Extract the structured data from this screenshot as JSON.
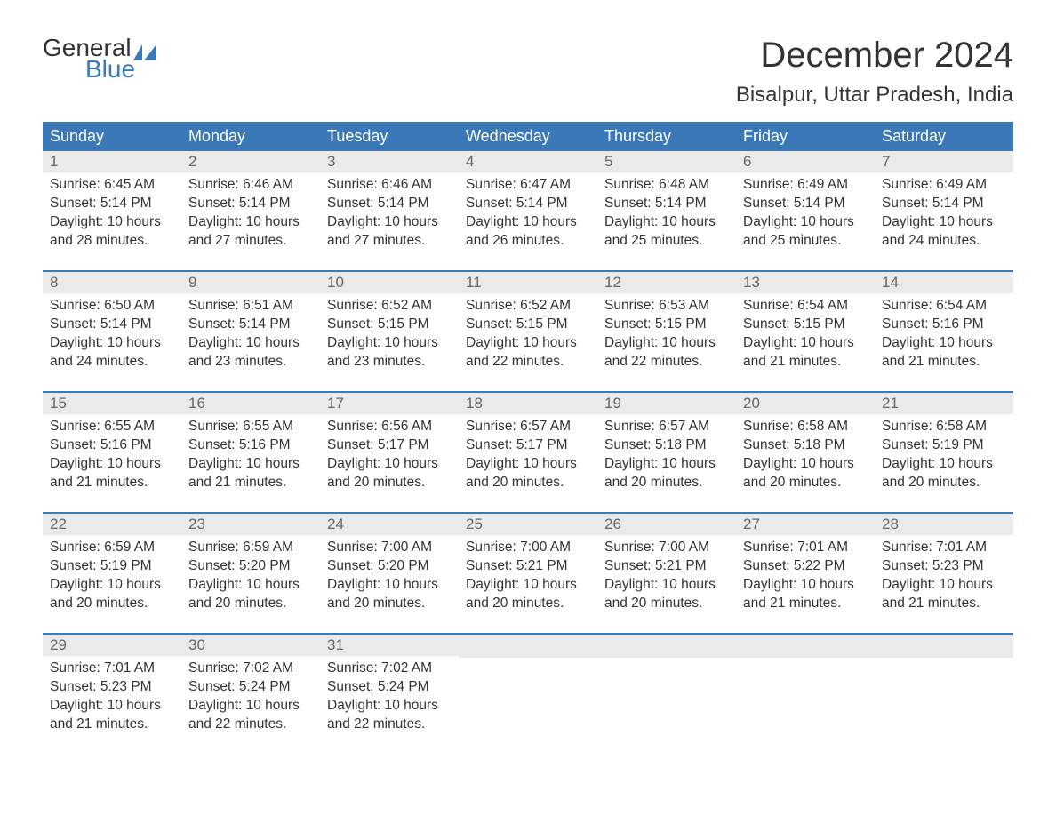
{
  "brand": {
    "word1": "General",
    "word2": "Blue",
    "word1_color": "#333333",
    "word2_color": "#3A78B8",
    "flag_color": "#3A78B8"
  },
  "title": "December 2024",
  "location": "Bisalpur, Uttar Pradesh, India",
  "colors": {
    "header_bg": "#3A78B8",
    "header_text": "#ffffff",
    "daynum_bg": "#EAEAEA",
    "daynum_text": "#666666",
    "body_text": "#333333",
    "week_divider": "#3A78B8",
    "page_bg": "#ffffff"
  },
  "typography": {
    "title_fontsize": 40,
    "location_fontsize": 24,
    "weekday_fontsize": 18,
    "daynum_fontsize": 17,
    "body_fontsize": 15.5,
    "logo_fontsize": 28
  },
  "weekdays": [
    "Sunday",
    "Monday",
    "Tuesday",
    "Wednesday",
    "Thursday",
    "Friday",
    "Saturday"
  ],
  "weeks": [
    [
      {
        "n": "1",
        "sunrise": "6:45 AM",
        "sunset": "5:14 PM",
        "dl1": "10 hours",
        "dl2": "and 28 minutes."
      },
      {
        "n": "2",
        "sunrise": "6:46 AM",
        "sunset": "5:14 PM",
        "dl1": "10 hours",
        "dl2": "and 27 minutes."
      },
      {
        "n": "3",
        "sunrise": "6:46 AM",
        "sunset": "5:14 PM",
        "dl1": "10 hours",
        "dl2": "and 27 minutes."
      },
      {
        "n": "4",
        "sunrise": "6:47 AM",
        "sunset": "5:14 PM",
        "dl1": "10 hours",
        "dl2": "and 26 minutes."
      },
      {
        "n": "5",
        "sunrise": "6:48 AM",
        "sunset": "5:14 PM",
        "dl1": "10 hours",
        "dl2": "and 25 minutes."
      },
      {
        "n": "6",
        "sunrise": "6:49 AM",
        "sunset": "5:14 PM",
        "dl1": "10 hours",
        "dl2": "and 25 minutes."
      },
      {
        "n": "7",
        "sunrise": "6:49 AM",
        "sunset": "5:14 PM",
        "dl1": "10 hours",
        "dl2": "and 24 minutes."
      }
    ],
    [
      {
        "n": "8",
        "sunrise": "6:50 AM",
        "sunset": "5:14 PM",
        "dl1": "10 hours",
        "dl2": "and 24 minutes."
      },
      {
        "n": "9",
        "sunrise": "6:51 AM",
        "sunset": "5:14 PM",
        "dl1": "10 hours",
        "dl2": "and 23 minutes."
      },
      {
        "n": "10",
        "sunrise": "6:52 AM",
        "sunset": "5:15 PM",
        "dl1": "10 hours",
        "dl2": "and 23 minutes."
      },
      {
        "n": "11",
        "sunrise": "6:52 AM",
        "sunset": "5:15 PM",
        "dl1": "10 hours",
        "dl2": "and 22 minutes."
      },
      {
        "n": "12",
        "sunrise": "6:53 AM",
        "sunset": "5:15 PM",
        "dl1": "10 hours",
        "dl2": "and 22 minutes."
      },
      {
        "n": "13",
        "sunrise": "6:54 AM",
        "sunset": "5:15 PM",
        "dl1": "10 hours",
        "dl2": "and 21 minutes."
      },
      {
        "n": "14",
        "sunrise": "6:54 AM",
        "sunset": "5:16 PM",
        "dl1": "10 hours",
        "dl2": "and 21 minutes."
      }
    ],
    [
      {
        "n": "15",
        "sunrise": "6:55 AM",
        "sunset": "5:16 PM",
        "dl1": "10 hours",
        "dl2": "and 21 minutes."
      },
      {
        "n": "16",
        "sunrise": "6:55 AM",
        "sunset": "5:16 PM",
        "dl1": "10 hours",
        "dl2": "and 21 minutes."
      },
      {
        "n": "17",
        "sunrise": "6:56 AM",
        "sunset": "5:17 PM",
        "dl1": "10 hours",
        "dl2": "and 20 minutes."
      },
      {
        "n": "18",
        "sunrise": "6:57 AM",
        "sunset": "5:17 PM",
        "dl1": "10 hours",
        "dl2": "and 20 minutes."
      },
      {
        "n": "19",
        "sunrise": "6:57 AM",
        "sunset": "5:18 PM",
        "dl1": "10 hours",
        "dl2": "and 20 minutes."
      },
      {
        "n": "20",
        "sunrise": "6:58 AM",
        "sunset": "5:18 PM",
        "dl1": "10 hours",
        "dl2": "and 20 minutes."
      },
      {
        "n": "21",
        "sunrise": "6:58 AM",
        "sunset": "5:19 PM",
        "dl1": "10 hours",
        "dl2": "and 20 minutes."
      }
    ],
    [
      {
        "n": "22",
        "sunrise": "6:59 AM",
        "sunset": "5:19 PM",
        "dl1": "10 hours",
        "dl2": "and 20 minutes."
      },
      {
        "n": "23",
        "sunrise": "6:59 AM",
        "sunset": "5:20 PM",
        "dl1": "10 hours",
        "dl2": "and 20 minutes."
      },
      {
        "n": "24",
        "sunrise": "7:00 AM",
        "sunset": "5:20 PM",
        "dl1": "10 hours",
        "dl2": "and 20 minutes."
      },
      {
        "n": "25",
        "sunrise": "7:00 AM",
        "sunset": "5:21 PM",
        "dl1": "10 hours",
        "dl2": "and 20 minutes."
      },
      {
        "n": "26",
        "sunrise": "7:00 AM",
        "sunset": "5:21 PM",
        "dl1": "10 hours",
        "dl2": "and 20 minutes."
      },
      {
        "n": "27",
        "sunrise": "7:01 AM",
        "sunset": "5:22 PM",
        "dl1": "10 hours",
        "dl2": "and 21 minutes."
      },
      {
        "n": "28",
        "sunrise": "7:01 AM",
        "sunset": "5:23 PM",
        "dl1": "10 hours",
        "dl2": "and 21 minutes."
      }
    ],
    [
      {
        "n": "29",
        "sunrise": "7:01 AM",
        "sunset": "5:23 PM",
        "dl1": "10 hours",
        "dl2": "and 21 minutes."
      },
      {
        "n": "30",
        "sunrise": "7:02 AM",
        "sunset": "5:24 PM",
        "dl1": "10 hours",
        "dl2": "and 22 minutes."
      },
      {
        "n": "31",
        "sunrise": "7:02 AM",
        "sunset": "5:24 PM",
        "dl1": "10 hours",
        "dl2": "and 22 minutes."
      },
      null,
      null,
      null,
      null
    ]
  ],
  "labels": {
    "sunrise_prefix": "Sunrise: ",
    "sunset_prefix": "Sunset: ",
    "daylight_prefix": "Daylight: "
  }
}
